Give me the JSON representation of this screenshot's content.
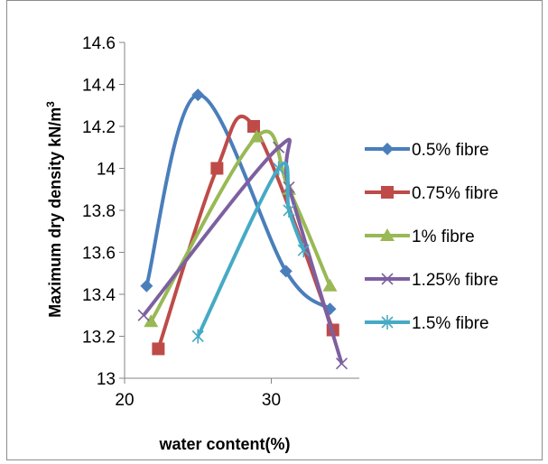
{
  "chart_data": {
    "type": "scatter",
    "title": "",
    "xlabel": "water content(%)",
    "ylabel": "Maximum dry density kN/m",
    "ylabel_superscript": "3",
    "xlim": [
      20,
      36
    ],
    "ylim": [
      13,
      14.6
    ],
    "x_ticks": [
      "20",
      "30"
    ],
    "x_tick_values": [
      20,
      30
    ],
    "y_ticks": [
      "13",
      "13.2",
      "13.4",
      "13.6",
      "13.8",
      "14",
      "14.2",
      "14.4",
      "14.6"
    ],
    "y_tick_values": [
      13,
      13.2,
      13.4,
      13.6,
      13.8,
      14,
      14.2,
      14.4,
      14.6
    ],
    "grid": false,
    "legend_position": "right",
    "smooth_lines": true,
    "series": [
      {
        "name": "0.5% fibre",
        "color": "#4a7ebb",
        "marker": "diamond",
        "x": [
          21.5,
          25.0,
          31.0,
          34.0
        ],
        "y": [
          13.44,
          14.35,
          13.51,
          13.33
        ]
      },
      {
        "name": "0.75% fibre",
        "color": "#be4b48",
        "marker": "square",
        "x": [
          22.3,
          26.3,
          28.8,
          34.2
        ],
        "y": [
          13.14,
          14.0,
          14.2,
          13.23
        ]
      },
      {
        "name": "1% fibre",
        "color": "#98b954",
        "marker": "triangle",
        "x": [
          21.8,
          29.0,
          31.2,
          34.0
        ],
        "y": [
          13.27,
          14.15,
          13.9,
          13.44
        ]
      },
      {
        "name": "1.25% fibre",
        "color": "#7d60a0",
        "marker": "x",
        "x": [
          21.3,
          30.5,
          31.2,
          34.8
        ],
        "y": [
          13.3,
          14.1,
          13.91,
          13.07
        ]
      },
      {
        "name": "1.5% fibre",
        "color": "#46aac5",
        "marker": "star",
        "x": [
          25.0,
          30.5,
          31.2,
          32.2
        ],
        "y": [
          13.2,
          14.0,
          13.8,
          13.61
        ]
      }
    ]
  }
}
